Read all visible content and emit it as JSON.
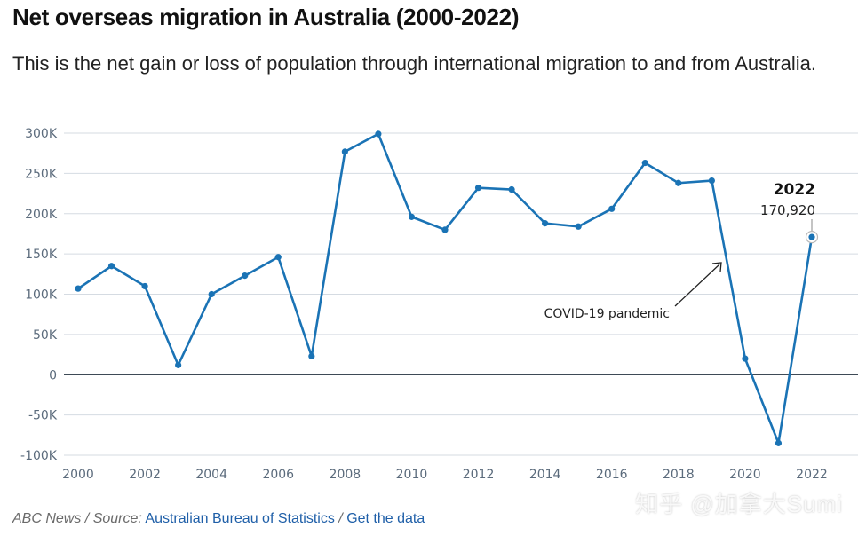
{
  "header": {
    "title": "Net overseas migration in Australia (2000-2022)",
    "subtitle": "This is the net gain or loss of population through international migration to and from Australia."
  },
  "chart_data": {
    "type": "line",
    "title": "Net overseas migration in Australia (2000-2022)",
    "x": [
      2000,
      2001,
      2002,
      2003,
      2004,
      2005,
      2006,
      2007,
      2008,
      2009,
      2010,
      2011,
      2012,
      2013,
      2014,
      2015,
      2016,
      2017,
      2018,
      2019,
      2020,
      2021,
      2022
    ],
    "series": [
      {
        "values": [
          107000,
          135000,
          110000,
          12000,
          100000,
          123000,
          146000,
          23000,
          277000,
          299000,
          196000,
          180000,
          232000,
          230000,
          188000,
          184000,
          206000,
          263000,
          238000,
          241000,
          20000,
          -85000,
          170920
        ]
      }
    ],
    "ylim": [
      -100000,
      300000
    ],
    "xlim": [
      2000,
      2022
    ],
    "yticks": [
      {
        "v": 300000,
        "label": "300K"
      },
      {
        "v": 250000,
        "label": "250K"
      },
      {
        "v": 200000,
        "label": "200K"
      },
      {
        "v": 150000,
        "label": "150K"
      },
      {
        "v": 100000,
        "label": "100K"
      },
      {
        "v": 50000,
        "label": "50K"
      },
      {
        "v": 0,
        "label": "0"
      },
      {
        "v": -50000,
        "label": "-50K"
      },
      {
        "v": -100000,
        "label": "-100K"
      }
    ],
    "xticks": [
      {
        "v": 2000,
        "label": "2000"
      },
      {
        "v": 2002,
        "label": "2002"
      },
      {
        "v": 2004,
        "label": "2004"
      },
      {
        "v": 2006,
        "label": "2006"
      },
      {
        "v": 2008,
        "label": "2008"
      },
      {
        "v": 2010,
        "label": "2010"
      },
      {
        "v": 2012,
        "label": "2012"
      },
      {
        "v": 2014,
        "label": "2014"
      },
      {
        "v": 2016,
        "label": "2016"
      },
      {
        "v": 2018,
        "label": "2018"
      },
      {
        "v": 2020,
        "label": "2020"
      },
      {
        "v": 2022,
        "label": "2022"
      }
    ],
    "annotation": {
      "text": "COVID-19 pandemic"
    },
    "callout": {
      "year": "2022",
      "value": "170,920"
    },
    "grid": true,
    "colors": {
      "line": "#1a73b5",
      "grid": "#d5dbe2",
      "zero_line": "#3e4a56"
    }
  },
  "footer": {
    "credit": "ABC News",
    "source_label": "Source:",
    "source_link": "Australian Bureau of Statistics",
    "data_link": "Get the data"
  },
  "watermark": "知乎 @加拿大Sumi"
}
